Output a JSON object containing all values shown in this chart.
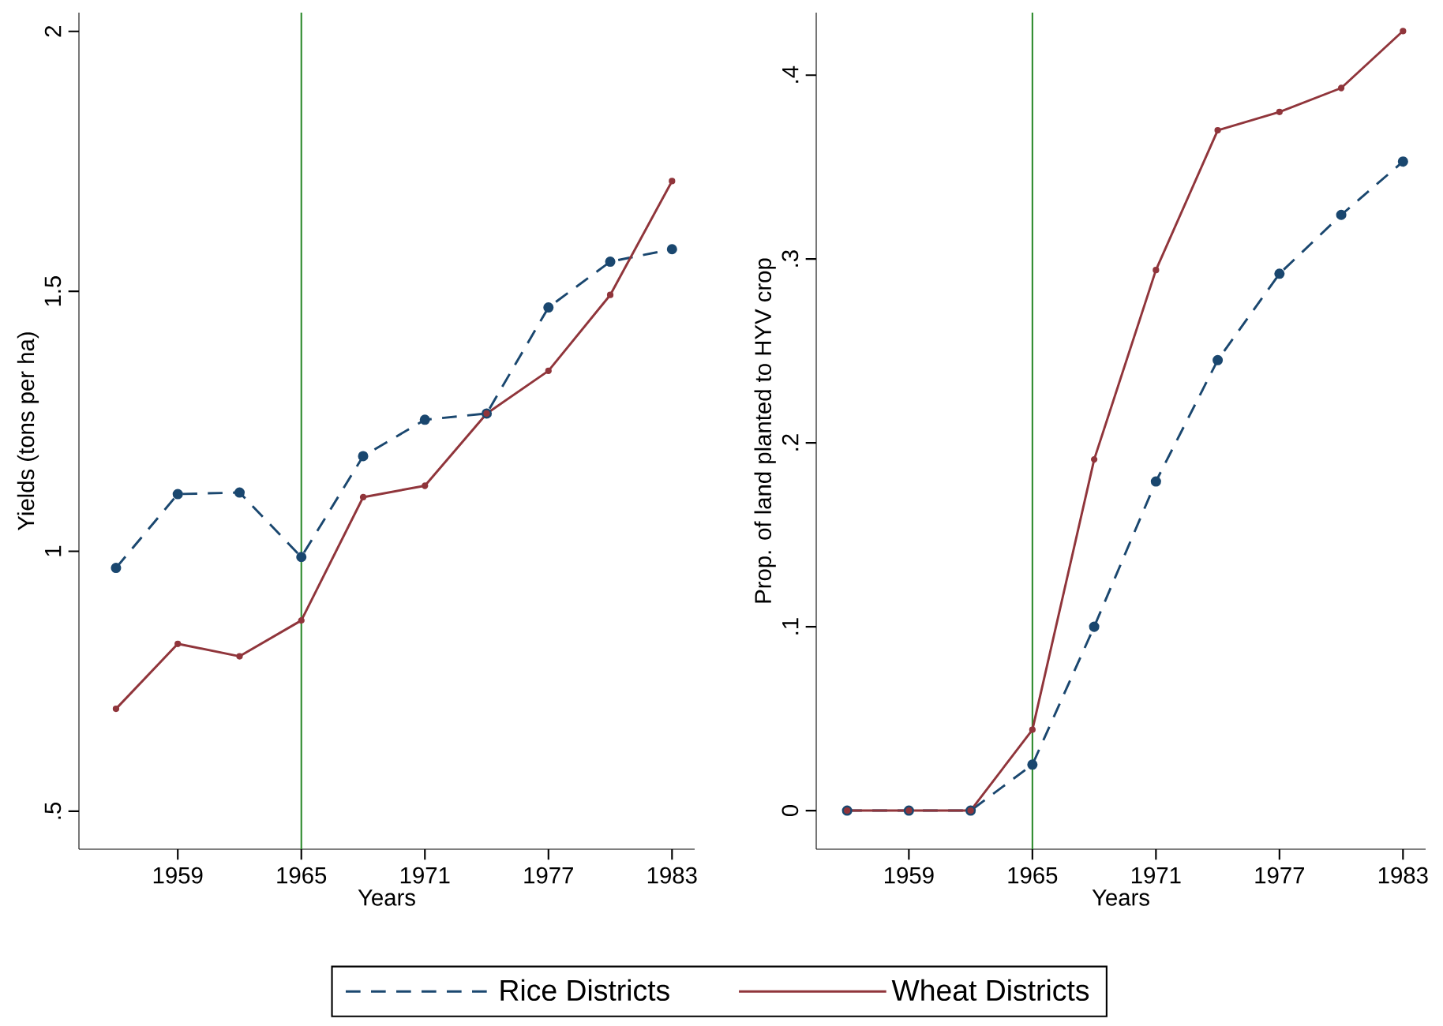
{
  "chart_data": [
    {
      "type": "line",
      "xlabel": "Years",
      "ylabel": "Yields (tons per ha)",
      "x": [
        1956,
        1959,
        1962,
        1965,
        1968,
        1971,
        1974,
        1977,
        1980,
        1983
      ],
      "series": [
        {
          "name": "Rice Districts",
          "color": "#1a476f",
          "line_style": "dashed",
          "values": [
            0.968,
            1.11,
            1.113,
            0.989,
            1.183,
            1.253,
            1.265,
            1.469,
            1.557,
            1.581
          ]
        },
        {
          "name": "Wheat Districts",
          "color": "#90353b",
          "line_style": "solid",
          "values": [
            0.697,
            0.822,
            0.798,
            0.867,
            1.104,
            1.126,
            1.265,
            1.347,
            1.493,
            1.712
          ]
        }
      ],
      "xlim": [
        1954.2,
        1984.1
      ],
      "xticks": [
        1959,
        1965,
        1971,
        1977,
        1983
      ],
      "ylim": [
        0.427,
        2.036
      ],
      "yticks": [
        {
          "value": 0.5,
          "label": ".5"
        },
        1,
        1.5,
        2
      ],
      "ref_lines": [
        {
          "axis": "x",
          "value": 1965,
          "color": "#2e8b2e"
        }
      ],
      "marker": "circle",
      "grid": false,
      "legend": "bottom"
    },
    {
      "type": "line",
      "xlabel": "Years",
      "ylabel": "Prop. of land planted to HYV crop",
      "x": [
        1956,
        1959,
        1962,
        1965,
        1968,
        1971,
        1974,
        1977,
        1980,
        1983
      ],
      "series": [
        {
          "color": "#1a476f",
          "line_style": "dashed",
          "values": [
            0,
            0,
            0,
            0.025,
            0.1,
            0.179,
            0.245,
            0.292,
            0.324,
            0.353
          ]
        },
        {
          "color": "#90353b",
          "line_style": "solid",
          "values": [
            0,
            0,
            0,
            0.044,
            0.191,
            0.294,
            0.37,
            0.38,
            0.393,
            0.424
          ]
        }
      ],
      "xlim": [
        1954.5,
        1984.1
      ],
      "xticks": [
        1959,
        1965,
        1971,
        1977,
        1983
      ],
      "ylim": [
        -0.021,
        0.434
      ],
      "yticks": [
        0,
        {
          "value": 0.1,
          "label": ".1"
        },
        {
          "value": 0.2,
          "label": ".2"
        },
        {
          "value": 0.3,
          "label": ".3"
        },
        {
          "value": 0.4,
          "label": ".4"
        }
      ],
      "ref_lines": [
        {
          "axis": "x",
          "value": 1965,
          "color": "#2e8b2e"
        }
      ],
      "marker": "circle",
      "grid": false,
      "legend": false
    }
  ]
}
